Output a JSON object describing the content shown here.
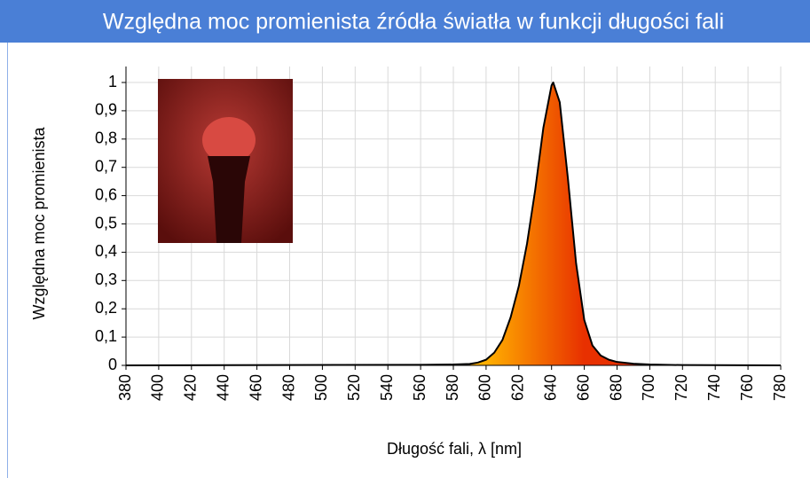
{
  "chart_data": {
    "type": "area",
    "title": "Względna moc promienista źródła światła w funkcji długości fali",
    "x_label": "Długość fali, λ [nm]",
    "y_label": "Względna moc promienista",
    "x": [
      380,
      560,
      580,
      590,
      595,
      600,
      605,
      610,
      615,
      620,
      625,
      630,
      635,
      640,
      641,
      645,
      650,
      655,
      660,
      665,
      670,
      675,
      680,
      690,
      700,
      720,
      780
    ],
    "values": [
      0,
      0.002,
      0.003,
      0.005,
      0.01,
      0.02,
      0.045,
      0.09,
      0.17,
      0.28,
      0.43,
      0.62,
      0.84,
      0.99,
      1,
      0.93,
      0.66,
      0.36,
      0.16,
      0.07,
      0.035,
      0.02,
      0.012,
      0.006,
      0.003,
      0.001,
      0
    ],
    "colors": [
      "#ffb000",
      "#e83000"
    ],
    "line_color": "#000000",
    "xlim": [
      380,
      780
    ],
    "xticks": [
      380,
      400,
      420,
      440,
      460,
      480,
      500,
      520,
      540,
      560,
      580,
      600,
      620,
      640,
      660,
      680,
      700,
      720,
      740,
      760,
      780
    ],
    "ylim": [
      0,
      1
    ],
    "yticks": [
      0,
      {
        "value": 0.1,
        "label": "0,1"
      },
      {
        "value": 0.2,
        "label": "0,2"
      },
      {
        "value": 0.3,
        "label": "0,3"
      },
      {
        "value": 0.4,
        "label": "0,4"
      },
      {
        "value": 0.5,
        "label": "0,5"
      },
      {
        "value": 0.6,
        "label": "0,6"
      },
      {
        "value": 0.7,
        "label": "0,7"
      },
      {
        "value": 0.8,
        "label": "0,8"
      },
      {
        "value": 0.9,
        "label": "0,9"
      },
      1
    ],
    "grid": true
  }
}
